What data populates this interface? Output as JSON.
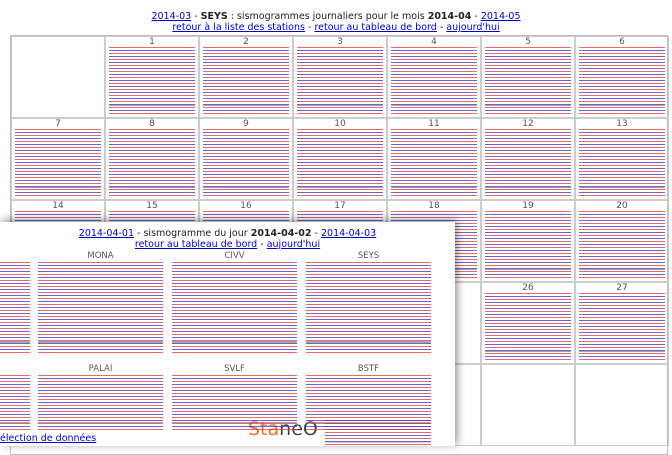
{
  "calendar": {
    "prev_month": "2014-03",
    "station": "SEYS",
    "caption": ": sismogrammes journaliers pour le mois",
    "month": "2014-04",
    "separator": "-",
    "next_month": "2014-05",
    "links": [
      "retour à la liste des stations",
      "retour au tableau de bord",
      "aujourd'hui"
    ],
    "days": [
      1,
      2,
      3,
      4,
      5,
      6,
      7,
      8,
      9,
      10,
      11,
      12,
      13,
      14,
      15,
      16,
      17,
      18,
      19,
      20,
      26,
      27
    ]
  },
  "day_view": {
    "prev_day": "2014-04-01",
    "caption": "- sismogramme du jour",
    "day": "2014-04-02",
    "separator": "-",
    "next_day": "2014-04-03",
    "links": [
      "retour au tableau de bord",
      "aujourd'hui"
    ],
    "stations": [
      "MONA",
      "CIVV",
      "SEYS",
      "PALAI",
      "SVLF",
      "BSTF"
    ],
    "selection_link": "élection de données",
    "logo": [
      "Sta",
      "neO"
    ]
  }
}
